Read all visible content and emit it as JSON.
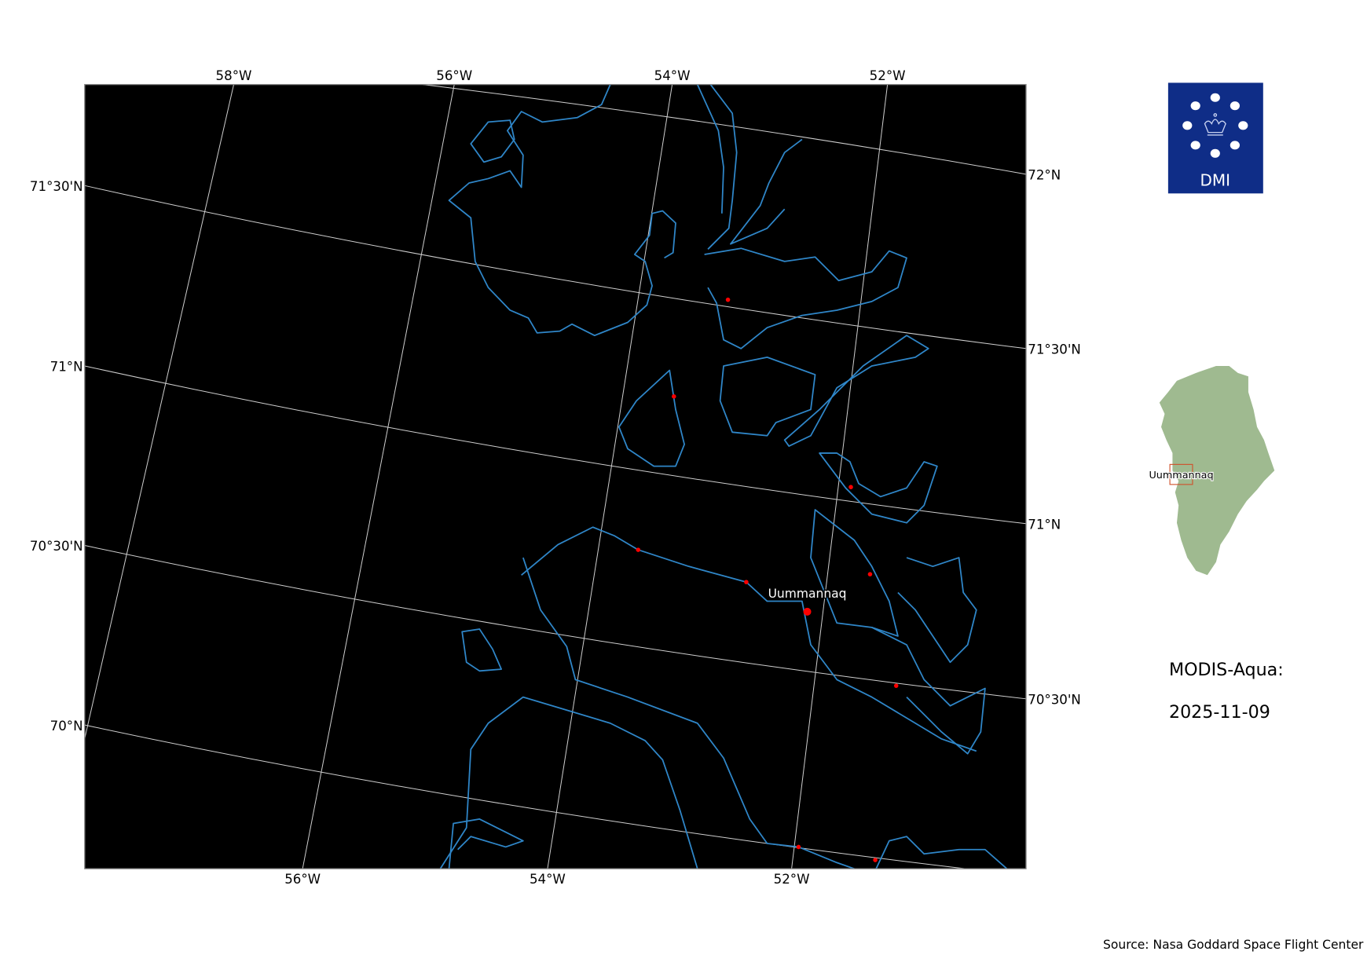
{
  "map": {
    "background_color": "#000000",
    "coastline_color": "#2f86c8",
    "marker_color": "#ff0000",
    "top_lon_labels": [
      "58°W",
      "56°W",
      "54°W",
      "52°W"
    ],
    "bottom_lon_labels": [
      "56°W",
      "54°W",
      "52°W"
    ],
    "left_lat_labels": [
      "71°30'N",
      "71°N",
      "70°30'N",
      "70°N"
    ],
    "right_lat_labels": [
      "72°N",
      "71°30'N",
      "71°N",
      "70°30'N"
    ],
    "city_label": "Uummannaq"
  },
  "logo": {
    "text": "DMI",
    "color": "#0f2d87"
  },
  "inset": {
    "label": "Uummannaq",
    "land_color": "#9fba90",
    "box_color": "#d0502a"
  },
  "info": {
    "sensor": "MODIS-Aqua:",
    "date": "2025-11-09"
  },
  "source": "Source: Nasa Goddard Space Flight Center"
}
